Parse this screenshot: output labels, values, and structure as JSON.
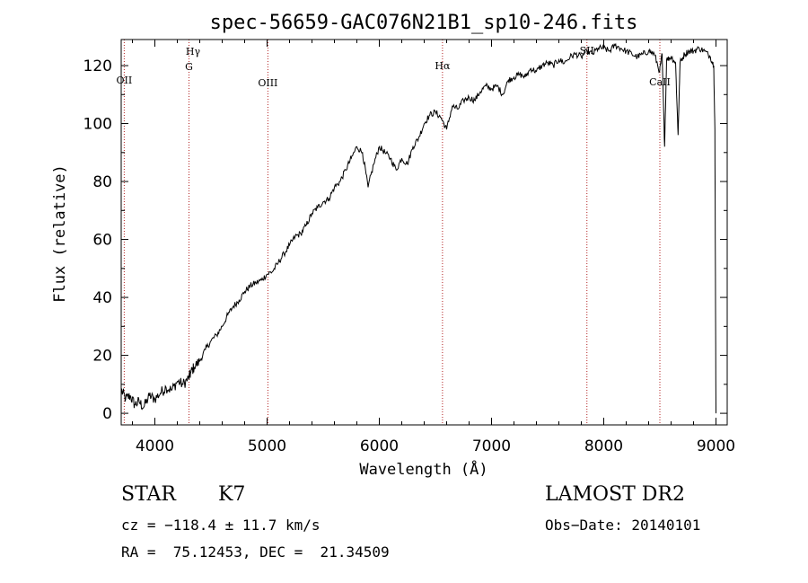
{
  "chart_data": {
    "type": "line",
    "title": "spec-56659-GAC076N21B1_sp10-246.fits",
    "xlabel": "Wavelength (Å)",
    "ylabel": "Flux (relative)",
    "xlim": [
      3700,
      9100
    ],
    "ylim": [
      -4,
      129
    ],
    "x_ticks": [
      4000,
      5000,
      6000,
      7000,
      8000,
      9000
    ],
    "y_ticks": [
      0,
      20,
      40,
      60,
      80,
      100,
      120
    ],
    "grid": false,
    "line_color": "#000000",
    "marker_color": "#b22222",
    "series": [
      {
        "x": [
          3700,
          3740,
          3780,
          3820,
          3860,
          3900,
          3950,
          4000,
          4050,
          4100,
          4150,
          4200,
          4250,
          4300,
          4320,
          4350,
          4400,
          4450,
          4500,
          4550,
          4600,
          4650,
          4700,
          4750,
          4800,
          4850,
          4900,
          4950,
          5000,
          5050,
          5100,
          5150,
          5200,
          5250,
          5300,
          5350,
          5400,
          5450,
          5500,
          5550,
          5600,
          5650,
          5700,
          5750,
          5800,
          5850,
          5900,
          5950,
          6000,
          6050,
          6100,
          6150,
          6200,
          6250,
          6300,
          6350,
          6400,
          6450,
          6500,
          6550,
          6600,
          6650,
          6700,
          6750,
          6800,
          6850,
          6900,
          6950,
          7000,
          7050,
          7100,
          7150,
          7200,
          7250,
          7300,
          7350,
          7400,
          7450,
          7500,
          7550,
          7600,
          7650,
          7700,
          7750,
          7800,
          7850,
          7900,
          7950,
          8000,
          8050,
          8100,
          8150,
          8200,
          8250,
          8300,
          8350,
          8400,
          8450,
          8498,
          8520,
          8542,
          8560,
          8600,
          8640,
          8662,
          8680,
          8720,
          8760,
          8800,
          8850,
          8900,
          8950,
          8980,
          8990,
          9000
        ],
        "values": [
          8,
          5,
          6,
          3,
          4,
          2,
          6,
          5,
          7,
          9,
          8,
          11,
          10,
          12,
          14,
          16,
          18,
          22,
          25,
          27,
          30,
          34,
          37,
          39,
          42,
          44,
          45,
          46,
          48,
          49,
          52,
          55,
          58,
          61,
          62,
          65,
          69,
          71,
          73,
          74,
          78,
          80,
          84,
          88,
          92,
          90,
          78,
          86,
          92,
          90,
          88,
          84,
          88,
          86,
          92,
          95,
          100,
          103,
          104,
          102,
          98,
          106,
          105,
          108,
          109,
          108,
          111,
          113,
          112,
          113,
          110,
          115,
          116,
          117,
          116,
          119,
          118,
          120,
          121,
          120,
          122,
          121,
          123,
          124,
          123,
          125,
          124,
          126,
          126,
          125,
          127,
          126,
          125,
          124,
          123,
          124,
          125,
          124,
          118,
          124,
          92,
          122,
          123,
          121,
          96,
          121,
          124,
          125,
          125,
          126,
          125,
          123,
          120,
          98,
          0
        ]
      }
    ],
    "spectral_lines": [
      {
        "label": "OII",
        "x": 3727
      },
      {
        "label": "Hγ",
        "x": 4340
      },
      {
        "label": "G",
        "x": 4304
      },
      {
        "label": "OIII",
        "x": 5007
      },
      {
        "label": "Hα",
        "x": 6563
      },
      {
        "label": "SII",
        "x": 7850
      },
      {
        "label": "CaII",
        "x": 8500
      }
    ]
  },
  "info": {
    "object_class": "STAR",
    "subclass": "K7",
    "survey": "LAMOST DR2",
    "redshift_text": "cz = −118.4 ± 11.7 km/s",
    "obs_date_text": "Obs−Date: 20140101",
    "coords_text": "RA =  75.12453, DEC =  21.34509"
  }
}
